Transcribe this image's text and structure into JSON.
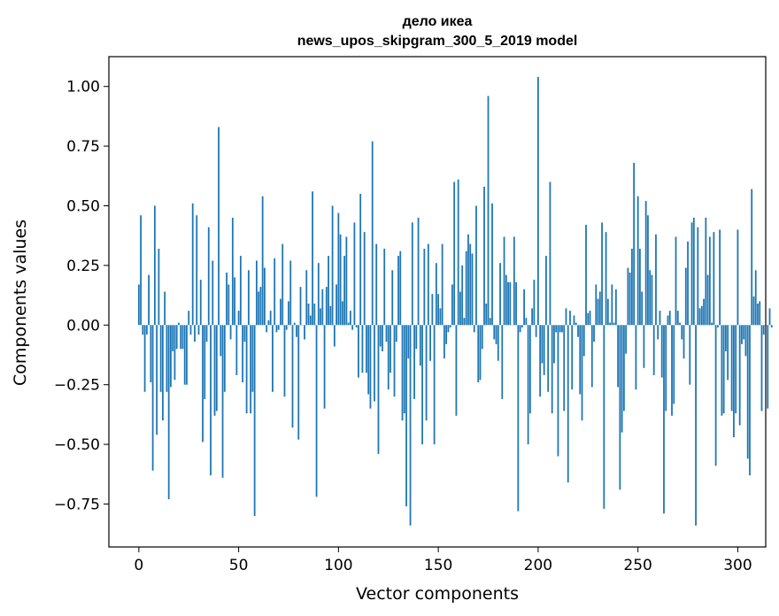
{
  "chart_data": {
    "type": "bar",
    "title": [
      "дело икеа",
      "news_upos_skipgram_300_5_2019 model"
    ],
    "xlabel": "Vector components",
    "ylabel": "Components values",
    "xlim": [
      -15,
      314
    ],
    "ylim": [
      -0.93,
      1.125
    ],
    "xticks": [
      0,
      50,
      100,
      150,
      200,
      250,
      300
    ],
    "xtick_labels": [
      "0",
      "50",
      "100",
      "150",
      "200",
      "250",
      "300"
    ],
    "yticks": [
      -0.75,
      -0.5,
      -0.25,
      0.0,
      0.25,
      0.5,
      0.75,
      1.0
    ],
    "ytick_labels": [
      "−0.75",
      "−0.50",
      "−0.25",
      "0.00",
      "0.25",
      "0.50",
      "0.75",
      "1.00"
    ],
    "bar_color": "#1f77b4",
    "grid": false,
    "values": [
      0.17,
      0.46,
      -0.04,
      -0.28,
      -0.04,
      0.21,
      -0.24,
      -0.61,
      0.5,
      -0.46,
      0.32,
      -0.28,
      -0.4,
      0.14,
      -0.28,
      -0.73,
      -0.26,
      -0.11,
      -0.23,
      -0.1,
      0.01,
      -0.1,
      -0.1,
      -0.25,
      -0.25,
      0.06,
      -0.04,
      0.51,
      -0.07,
      0.46,
      -0.04,
      0.19,
      -0.49,
      -0.31,
      -0.07,
      0.41,
      -0.63,
      0.27,
      -0.38,
      -0.36,
      0.83,
      -0.13,
      -0.64,
      -0.28,
      0.22,
      0.17,
      -0.06,
      0.45,
      0.2,
      -0.21,
      0.06,
      0.29,
      -0.24,
      -0.07,
      -0.37,
      0.23,
      -0.37,
      -0.28,
      -0.8,
      0.27,
      0.14,
      0.16,
      0.54,
      0.24,
      -0.03,
      0.02,
      0.06,
      -0.28,
      0.28,
      -0.03,
      -0.02,
      0.11,
      0.34,
      -0.3,
      -0.02,
      0.1,
      0.27,
      -0.43,
      0.01,
      -0.05,
      -0.48,
      0.16,
      0.0,
      -0.06,
      0.23,
      0.09,
      0.04,
      0.56,
      0.09,
      -0.72,
      0.26,
      0.07,
      0.15,
      -0.35,
      0.16,
      0.29,
      0.08,
      0.5,
      -0.09,
      0.17,
      0.47,
      0.38,
      0.1,
      0.29,
      0.37,
      0.01,
      0.06,
      -0.02,
      0.43,
      -0.01,
      -0.22,
      0.55,
      -0.2,
      0.39,
      -0.2,
      -0.29,
      -0.35,
      0.77,
      -0.32,
      0.34,
      -0.54,
      -0.09,
      -0.11,
      0.32,
      -0.07,
      -0.27,
      -0.2,
      0.23,
      -0.3,
      -0.07,
      0.29,
      0.31,
      -0.4,
      -0.37,
      -0.76,
      -0.14,
      -0.84,
      0.43,
      -0.31,
      -0.1,
      0.45,
      -0.17,
      -0.5,
      0.32,
      -0.4,
      0.34,
      -0.15,
      0.13,
      -0.5,
      0.26,
      0.13,
      0.07,
      0.34,
      -0.14,
      -0.08,
      -0.03,
      -0.01,
      0.17,
      0.6,
      -0.38,
      0.61,
      0.14,
      0.25,
      0.03,
      0.31,
      0.38,
      0.34,
      0.3,
      -0.03,
      0.5,
      -0.24,
      -0.23,
      -0.1,
      0.58,
      0.09,
      0.96,
      0.03,
      0.51,
      -0.06,
      -0.08,
      -0.15,
      0.26,
      -0.31,
      0.37,
      0.21,
      0.18,
      0.18,
      0.0,
      0.37,
      0.18,
      -0.78,
      -0.03,
      -0.01,
      0.15,
      0.03,
      -0.5,
      -0.37,
      0.07,
      0.19,
      -0.05,
      1.04,
      -0.3,
      -0.16,
      -0.21,
      0.29,
      -0.28,
      0.6,
      -0.37,
      -0.16,
      -0.03,
      -0.55,
      -0.03,
      -0.03,
      -0.36,
      0.07,
      -0.66,
      0.06,
      -0.27,
      0.04,
      0.01,
      -0.05,
      -0.29,
      -0.4,
      -0.13,
      0.42,
      0.05,
      0.06,
      -0.26,
      -0.07,
      0.17,
      0.11,
      0.14,
      0.43,
      -0.77,
      0.39,
      0.11,
      0.01,
      0.17,
      0.01,
      0.15,
      -0.26,
      -0.69,
      -0.45,
      -0.36,
      -0.12,
      0.24,
      0.22,
      0.32,
      0.68,
      -0.27,
      0.54,
      0.32,
      0.14,
      -0.18,
      0.52,
      0.46,
      0.23,
      0.21,
      -0.21,
      0.38,
      -0.06,
      0.06,
      -0.22,
      -0.79,
      -0.36,
      0.04,
      0.06,
      -0.38,
      -0.33,
      0.37,
      0.06,
      0.01,
      -0.06,
      -0.14,
      0.24,
      0.35,
      -0.25,
      0.43,
      0.45,
      -0.84,
      0.41,
      0.07,
      0.08,
      0.11,
      0.45,
      0.21,
      0.37,
      0.01,
      0.39,
      -0.59,
      -0.01,
      0.4,
      -0.38,
      -0.37,
      -0.11,
      -0.23,
      0.0,
      -0.36,
      -0.47,
      -0.37,
      0.4,
      -0.42,
      -0.08,
      -0.06,
      -0.13,
      -0.56,
      -0.63,
      0.57,
      0.12,
      0.23,
      0.09,
      0.1,
      -0.36,
      -0.04,
      0.0,
      -0.35,
      0.07,
      -0.01
    ]
  }
}
